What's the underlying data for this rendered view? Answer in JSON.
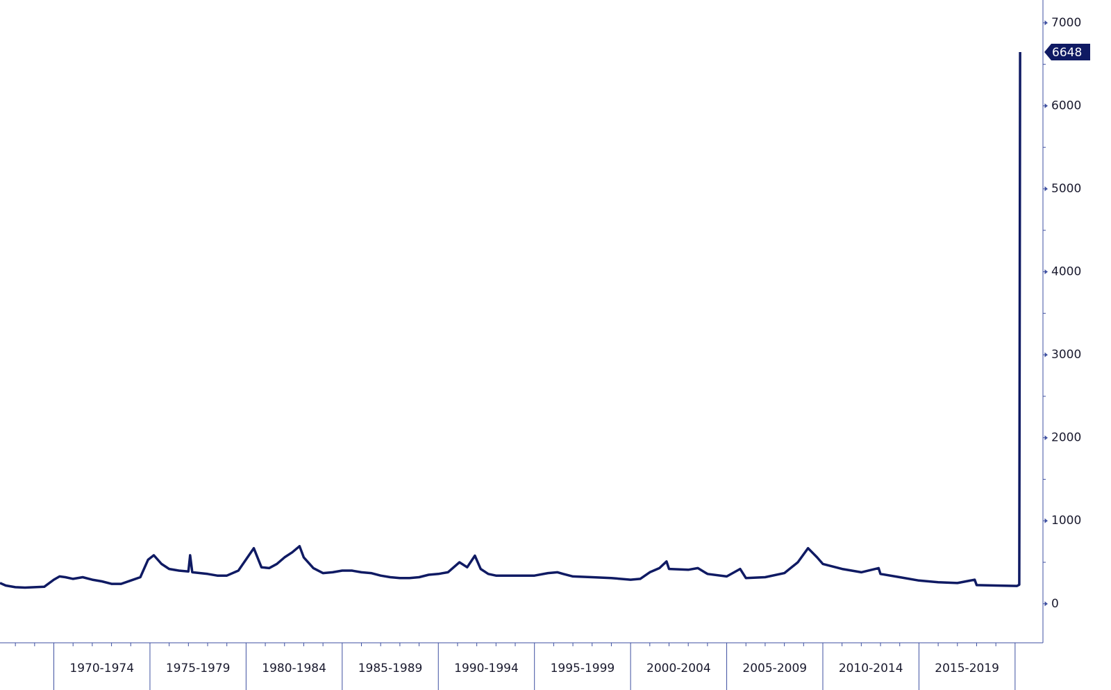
{
  "chart_data": {
    "type": "line",
    "x": [
      1967.2,
      1967.5,
      1968,
      1968.5,
      1969,
      1969.5,
      1970,
      1970.3,
      1970.6,
      1971,
      1971.5,
      1972,
      1972.5,
      1973,
      1973.5,
      1974,
      1974.5,
      1974.9,
      1975.2,
      1975.6,
      1976,
      1976.5,
      1977,
      1977.09,
      1977.2,
      1978,
      1978.5,
      1979,
      1979.6,
      1980.4,
      1980.8,
      1981.2,
      1981.6,
      1982,
      1982.4,
      1982.78,
      1983,
      1983.5,
      1984,
      1984.5,
      1985,
      1985.5,
      1986,
      1986.5,
      1987,
      1987.5,
      1988,
      1988.5,
      1989,
      1989.5,
      1990,
      1990.5,
      1991.1,
      1991.5,
      1991.9,
      1992.2,
      1992.6,
      1993,
      1994,
      1995,
      1995.7,
      1996.2,
      1996.5,
      1997,
      1998,
      1999,
      2000,
      2000.5,
      2001,
      2001.5,
      2001.87,
      2002,
      2003,
      2003.5,
      2004,
      2005,
      2005.7,
      2006,
      2007,
      2008,
      2008.7,
      2009.23,
      2009.7,
      2010,
      2011,
      2012,
      2012.9,
      2013,
      2014,
      2015,
      2016,
      2017,
      2017.9,
      2018,
      2019,
      2020.1,
      2020.22,
      2020.26
    ],
    "series": [
      {
        "color": "#0f1a63",
        "values": [
          250,
          220,
          200,
          195,
          200,
          205,
          290,
          330,
          320,
          300,
          320,
          290,
          270,
          240,
          240,
          280,
          320,
          530,
          585,
          480,
          420,
          400,
          390,
          585,
          380,
          360,
          340,
          340,
          400,
          670,
          440,
          430,
          480,
          560,
          620,
          694,
          560,
          430,
          370,
          380,
          400,
          400,
          380,
          370,
          340,
          320,
          310,
          310,
          320,
          350,
          360,
          380,
          500,
          440,
          580,
          420,
          360,
          340,
          340,
          340,
          370,
          380,
          360,
          330,
          320,
          310,
          290,
          300,
          380,
          430,
          510,
          420,
          410,
          430,
          360,
          330,
          420,
          310,
          320,
          370,
          500,
          670,
          560,
          480,
          420,
          380,
          430,
          360,
          320,
          280,
          260,
          250,
          290,
          225,
          220,
          215,
          230,
          6648
        ]
      }
    ],
    "xlim": [
      1967.2,
      2021.45
    ],
    "ylim": [
      -470,
      7275
    ],
    "yticks": [
      0,
      1000,
      2000,
      3000,
      4000,
      5000,
      6000,
      7000
    ],
    "yminor": [
      500,
      1500,
      2500,
      3500,
      4500,
      5500,
      6500
    ],
    "xminor": [
      1968,
      1969,
      1971,
      1972,
      1973,
      1974,
      1976,
      1977,
      1978,
      1979,
      1981,
      1982,
      1983,
      1984,
      1986,
      1987,
      1988,
      1989,
      1991,
      1992,
      1993,
      1994,
      1996,
      1997,
      1998,
      1999,
      2001,
      2002,
      2003,
      2004,
      2006,
      2007,
      2008,
      2009,
      2011,
      2012,
      2013,
      2014,
      2016,
      2017,
      2018,
      2019
    ],
    "periods": [
      {
        "label": "1970-1974",
        "start": 1970,
        "end": 1975
      },
      {
        "label": "1975-1979",
        "start": 1975,
        "end": 1980
      },
      {
        "label": "1980-1984",
        "start": 1980,
        "end": 1985
      },
      {
        "label": "1985-1989",
        "start": 1985,
        "end": 1990
      },
      {
        "label": "1990-1994",
        "start": 1990,
        "end": 1995
      },
      {
        "label": "1995-1999",
        "start": 1995,
        "end": 2000
      },
      {
        "label": "2000-2004",
        "start": 2000,
        "end": 2005
      },
      {
        "label": "2005-2009",
        "start": 2005,
        "end": 2010
      },
      {
        "label": "2010-2014",
        "start": 2010,
        "end": 2015
      },
      {
        "label": "2015-2019",
        "start": 2015,
        "end": 2020
      }
    ]
  }
}
